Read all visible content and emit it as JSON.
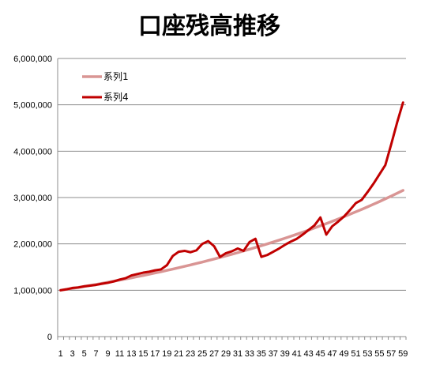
{
  "chart_data": {
    "type": "line",
    "title": "口座残高推移",
    "xlabel": "",
    "ylabel": "",
    "ylim": [
      0,
      6000000
    ],
    "yticks": [
      0,
      1000000,
      2000000,
      3000000,
      4000000,
      5000000,
      6000000
    ],
    "ytick_labels": [
      "0",
      "1,000,000",
      "2,000,000",
      "3,000,000",
      "4,000,000",
      "5,000,000",
      "6,000,000"
    ],
    "x": [
      1,
      2,
      3,
      4,
      5,
      6,
      7,
      8,
      9,
      10,
      11,
      12,
      13,
      14,
      15,
      16,
      17,
      18,
      19,
      20,
      21,
      22,
      23,
      24,
      25,
      26,
      27,
      28,
      29,
      30,
      31,
      32,
      33,
      34,
      35,
      36,
      37,
      38,
      39,
      40,
      41,
      42,
      43,
      44,
      45,
      46,
      47,
      48,
      49,
      50,
      51,
      52,
      53,
      54,
      55,
      56,
      57,
      58,
      59
    ],
    "xtick_labels": [
      "1",
      "3",
      "5",
      "7",
      "9",
      "11",
      "13",
      "15",
      "17",
      "19",
      "21",
      "23",
      "25",
      "27",
      "29",
      "31",
      "33",
      "35",
      "37",
      "39",
      "41",
      "43",
      "45",
      "47",
      "49",
      "51",
      "53",
      "55",
      "57",
      "59"
    ],
    "grid": true,
    "legend_position": "top-left",
    "series": [
      {
        "name": "系列1",
        "color": "#d99594",
        "values": [
          1000000,
          1020000,
          1040000,
          1061000,
          1082000,
          1104000,
          1126000,
          1149000,
          1172000,
          1195000,
          1219000,
          1243000,
          1268000,
          1294000,
          1319000,
          1346000,
          1373000,
          1400000,
          1428000,
          1457000,
          1486000,
          1516000,
          1546000,
          1577000,
          1608000,
          1641000,
          1673000,
          1707000,
          1741000,
          1776000,
          1811000,
          1848000,
          1885000,
          1922000,
          1961000,
          2000000,
          2040000,
          2081000,
          2122000,
          2165000,
          2208000,
          2252000,
          2297000,
          2343000,
          2390000,
          2438000,
          2487000,
          2536000,
          2587000,
          2639000,
          2692000,
          2745000,
          2800000,
          2856000,
          2913000,
          2972000,
          3031000,
          3092000,
          3154000
        ]
      },
      {
        "name": "系列4",
        "color": "#c00000",
        "values": [
          1000000,
          1020000,
          1050000,
          1060000,
          1085000,
          1100000,
          1115000,
          1140000,
          1160000,
          1190000,
          1230000,
          1260000,
          1320000,
          1350000,
          1380000,
          1400000,
          1430000,
          1450000,
          1540000,
          1740000,
          1830000,
          1850000,
          1820000,
          1860000,
          2000000,
          2060000,
          1950000,
          1720000,
          1800000,
          1840000,
          1900000,
          1850000,
          2040000,
          2110000,
          1720000,
          1760000,
          1830000,
          1900000,
          1980000,
          2050000,
          2110000,
          2200000,
          2300000,
          2400000,
          2570000,
          2200000,
          2380000,
          2480000,
          2590000,
          2730000,
          2880000,
          2950000,
          3120000,
          3300000,
          3500000,
          3700000,
          4150000,
          4620000,
          5050000
        ]
      }
    ]
  }
}
